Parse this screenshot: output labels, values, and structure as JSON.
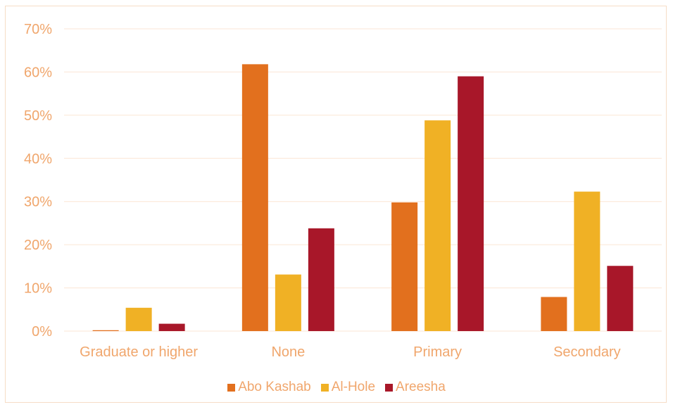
{
  "chart_data": {
    "type": "bar",
    "categories": [
      "Graduate or higher",
      "None",
      "Primary",
      "Secondary"
    ],
    "series": [
      {
        "name": "Abo Kashab",
        "color": "#e2701e",
        "values": [
          0.2,
          61.8,
          29.8,
          7.9
        ]
      },
      {
        "name": "Al-Hole",
        "color": "#f0b125",
        "values": [
          5.4,
          13.1,
          48.8,
          32.3
        ]
      },
      {
        "name": "Areesha",
        "color": "#a81729",
        "values": [
          1.7,
          23.8,
          59.0,
          15.1
        ]
      }
    ],
    "yticks": [
      "0%",
      "10%",
      "20%",
      "30%",
      "40%",
      "50%",
      "60%",
      "70%"
    ],
    "ylim": [
      0,
      70
    ],
    "grid": true,
    "legend_position": "bottom",
    "text_color": "#f0a66c",
    "grid_color": "#fbe6d4"
  }
}
